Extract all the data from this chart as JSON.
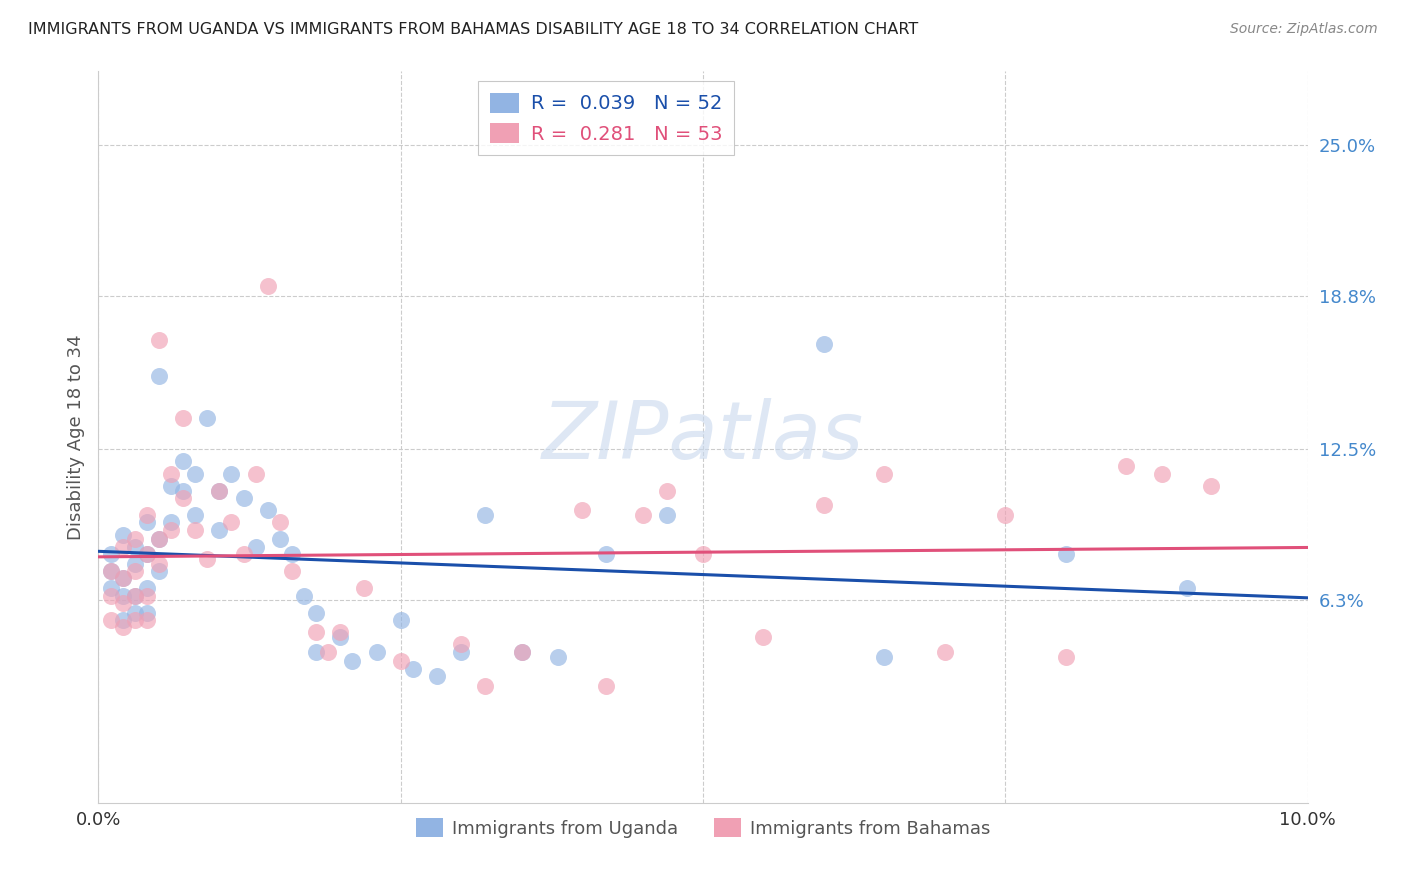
{
  "title": "IMMIGRANTS FROM UGANDA VS IMMIGRANTS FROM BAHAMAS DISABILITY AGE 18 TO 34 CORRELATION CHART",
  "source": "Source: ZipAtlas.com",
  "ylabel": "Disability Age 18 to 34",
  "xlim": [
    0.0,
    0.1
  ],
  "ylim": [
    -0.02,
    0.28
  ],
  "x_tick_labels": [
    "0.0%",
    "10.0%"
  ],
  "x_tick_vals": [
    0.0,
    0.1
  ],
  "y_tick_labels_right": [
    "6.3%",
    "12.5%",
    "18.8%",
    "25.0%"
  ],
  "y_tick_values_right": [
    0.063,
    0.125,
    0.188,
    0.25
  ],
  "watermark": "ZIPatlas",
  "r1": 0.039,
  "n1": 52,
  "r2": 0.281,
  "n2": 53,
  "uganda_color": "#92b4e3",
  "bahamas_color": "#f0a0b4",
  "uganda_line_color": "#1a4faa",
  "bahamas_line_color": "#e0507a",
  "background_color": "#ffffff",
  "grid_color": "#cccccc",
  "uganda_x": [
    0.001,
    0.001,
    0.001,
    0.002,
    0.002,
    0.002,
    0.002,
    0.003,
    0.003,
    0.003,
    0.003,
    0.004,
    0.004,
    0.004,
    0.004,
    0.005,
    0.005,
    0.005,
    0.006,
    0.006,
    0.007,
    0.007,
    0.008,
    0.008,
    0.009,
    0.01,
    0.01,
    0.011,
    0.012,
    0.013,
    0.014,
    0.015,
    0.016,
    0.017,
    0.018,
    0.018,
    0.02,
    0.021,
    0.023,
    0.025,
    0.026,
    0.028,
    0.03,
    0.032,
    0.035,
    0.038,
    0.042,
    0.047,
    0.06,
    0.065,
    0.08,
    0.09
  ],
  "uganda_y": [
    0.082,
    0.075,
    0.068,
    0.09,
    0.072,
    0.065,
    0.055,
    0.085,
    0.078,
    0.065,
    0.058,
    0.095,
    0.082,
    0.068,
    0.058,
    0.155,
    0.088,
    0.075,
    0.11,
    0.095,
    0.12,
    0.108,
    0.115,
    0.098,
    0.138,
    0.108,
    0.092,
    0.115,
    0.105,
    0.085,
    0.1,
    0.088,
    0.082,
    0.065,
    0.058,
    0.042,
    0.048,
    0.038,
    0.042,
    0.055,
    0.035,
    0.032,
    0.042,
    0.098,
    0.042,
    0.04,
    0.082,
    0.098,
    0.168,
    0.04,
    0.082,
    0.068
  ],
  "bahamas_x": [
    0.001,
    0.001,
    0.001,
    0.002,
    0.002,
    0.002,
    0.002,
    0.003,
    0.003,
    0.003,
    0.003,
    0.004,
    0.004,
    0.004,
    0.004,
    0.005,
    0.005,
    0.005,
    0.006,
    0.006,
    0.007,
    0.007,
    0.008,
    0.009,
    0.01,
    0.011,
    0.012,
    0.013,
    0.014,
    0.015,
    0.016,
    0.018,
    0.019,
    0.02,
    0.022,
    0.025,
    0.03,
    0.032,
    0.035,
    0.04,
    0.042,
    0.045,
    0.047,
    0.05,
    0.055,
    0.06,
    0.065,
    0.07,
    0.075,
    0.08,
    0.085,
    0.088,
    0.092
  ],
  "bahamas_y": [
    0.075,
    0.065,
    0.055,
    0.085,
    0.072,
    0.062,
    0.052,
    0.088,
    0.075,
    0.065,
    0.055,
    0.098,
    0.082,
    0.065,
    0.055,
    0.17,
    0.088,
    0.078,
    0.115,
    0.092,
    0.138,
    0.105,
    0.092,
    0.08,
    0.108,
    0.095,
    0.082,
    0.115,
    0.192,
    0.095,
    0.075,
    0.05,
    0.042,
    0.05,
    0.068,
    0.038,
    0.045,
    0.028,
    0.042,
    0.1,
    0.028,
    0.098,
    0.108,
    0.082,
    0.048,
    0.102,
    0.115,
    0.042,
    0.098,
    0.04,
    0.118,
    0.115,
    0.11
  ]
}
